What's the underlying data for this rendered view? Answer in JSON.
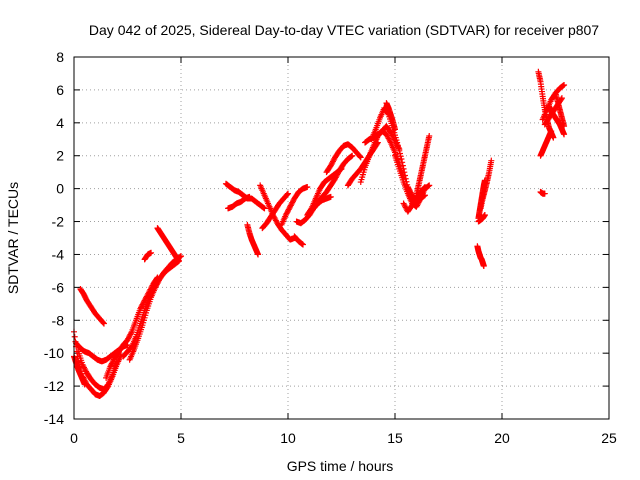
{
  "chart_data": {
    "type": "scatter",
    "title": "Day 042 of 2025, Sidereal Day-to-day VTEC variation (SDTVAR) for receiver p807",
    "xlabel": "GPS time / hours",
    "ylabel": "SDTVAR / TECUs",
    "xlim": [
      0,
      25
    ],
    "ylim": [
      -14,
      8
    ],
    "xticks": [
      0,
      5,
      10,
      15,
      20,
      25
    ],
    "yticks": [
      -14,
      -12,
      -10,
      -8,
      -6,
      -4,
      -2,
      0,
      2,
      4,
      6,
      8
    ],
    "grid": true,
    "legend": "none",
    "marker": "plus",
    "color": "#ff0000",
    "series": [
      {
        "tracks": [
          {
            "x": [
              0.0,
              0.2,
              0.4,
              0.6,
              0.8,
              1.0,
              1.2,
              1.4,
              1.6,
              1.8,
              2.0,
              2.2
            ],
            "y": [
              -8.7,
              -10.5,
              -11.4,
              -11.9,
              -12.2,
              -12.5,
              -12.6,
              -12.4,
              -12.0,
              -11.4,
              -10.7,
              -10.1
            ]
          },
          {
            "x": [
              0.2,
              0.4,
              0.6,
              0.8,
              1.0,
              1.2,
              1.4,
              1.6,
              1.8,
              2.0
            ],
            "y": [
              -9.9,
              -10.7,
              -11.2,
              -11.6,
              -11.9,
              -12.1,
              -12.2,
              -11.9,
              -11.3,
              -10.5
            ]
          },
          {
            "x": [
              0.1,
              0.3,
              0.5,
              0.7,
              0.9,
              1.1,
              1.3,
              1.5,
              1.7,
              1.9,
              2.1,
              2.3,
              2.5
            ],
            "y": [
              -9.4,
              -9.7,
              -9.9,
              -10.0,
              -10.2,
              -10.4,
              -10.5,
              -10.4,
              -10.2,
              -10.0,
              -9.8,
              -9.6,
              -9.5
            ]
          },
          {
            "x": [
              0.0,
              0.1,
              0.2,
              0.3,
              0.4,
              0.5
            ],
            "y": [
              -10.2,
              -10.6,
              -11.0,
              -11.3,
              -11.6,
              -11.9
            ]
          },
          {
            "x": [
              0.3,
              0.45,
              0.6,
              0.8,
              1.0,
              1.2,
              1.4
            ],
            "y": [
              -6.1,
              -6.4,
              -6.8,
              -7.2,
              -7.6,
              -7.9,
              -8.2
            ]
          },
          {
            "x": [
              1.5,
              1.7,
              1.9,
              2.1,
              2.3,
              2.5,
              2.7,
              2.9,
              3.1,
              3.3,
              3.5,
              3.7,
              3.9
            ],
            "y": [
              -11.5,
              -10.8,
              -10.3,
              -9.9,
              -9.5,
              -9.2,
              -8.7,
              -8.0,
              -7.3,
              -6.8,
              -6.3,
              -5.8,
              -5.4
            ]
          },
          {
            "x": [
              2.3,
              2.5,
              2.7,
              2.9,
              3.1,
              3.3,
              3.5,
              3.7,
              3.9,
              4.1,
              4.3,
              4.5,
              4.7,
              4.9
            ],
            "y": [
              -10.2,
              -9.9,
              -9.6,
              -9.0,
              -8.2,
              -7.4,
              -6.7,
              -6.1,
              -5.6,
              -5.3,
              -5.0,
              -4.8,
              -4.6,
              -4.4
            ]
          },
          {
            "x": [
              2.6,
              2.8,
              3.0,
              3.2,
              3.4,
              3.6,
              3.8,
              4.0,
              4.2,
              4.4,
              4.6,
              4.8,
              5.0
            ],
            "y": [
              -10.4,
              -9.8,
              -9.1,
              -8.3,
              -7.4,
              -6.6,
              -6.0,
              -5.5,
              -5.1,
              -4.8,
              -4.5,
              -4.3,
              -4.1
            ]
          },
          {
            "x": [
              3.3,
              3.45,
              3.6
            ],
            "y": [
              -4.3,
              -4.0,
              -3.9
            ]
          },
          {
            "x": [
              3.9,
              4.0,
              4.1,
              4.2,
              4.3,
              4.4,
              4.5,
              4.6,
              4.7,
              4.8,
              4.9
            ],
            "y": [
              -2.4,
              -2.6,
              -2.8,
              -3.0,
              -3.2,
              -3.4,
              -3.6,
              -3.8,
              -4.0,
              -4.2,
              -4.4
            ]
          },
          {
            "x": [
              7.1,
              7.3,
              7.5,
              7.7,
              7.9,
              8.1,
              8.3,
              8.5,
              8.7,
              8.9
            ],
            "y": [
              0.3,
              0.1,
              -0.1,
              -0.2,
              -0.4,
              -0.6,
              -0.6,
              -0.8,
              -1.0,
              -1.2
            ]
          },
          {
            "x": [
              7.2,
              7.4,
              7.6,
              7.8,
              8.0,
              8.2
            ],
            "y": [
              -1.2,
              -1.1,
              -0.9,
              -0.8,
              -0.6,
              -0.5
            ]
          },
          {
            "x": [
              8.1,
              8.2,
              8.3,
              8.4,
              8.5,
              8.6
            ],
            "y": [
              -2.2,
              -2.7,
              -3.1,
              -3.4,
              -3.7,
              -4.0
            ]
          },
          {
            "x": [
              8.7,
              8.9,
              9.1,
              9.3,
              9.5,
              9.7,
              9.9,
              10.1,
              10.3
            ],
            "y": [
              0.2,
              -0.4,
              -1.0,
              -1.6,
              -2.1,
              -2.5,
              -2.8,
              -3.1,
              -3.0
            ]
          },
          {
            "x": [
              8.8,
              9.0,
              9.2,
              9.4,
              9.6,
              9.8,
              10.0
            ],
            "y": [
              -2.4,
              -2.1,
              -1.7,
              -1.3,
              -0.9,
              -0.6,
              -0.3
            ]
          },
          {
            "x": [
              9.7,
              9.9,
              10.1,
              10.3,
              10.5,
              10.7,
              10.9
            ],
            "y": [
              -2.2,
              -1.6,
              -1.1,
              -0.6,
              -0.2,
              0.0,
              0.1
            ]
          },
          {
            "x": [
              10.4,
              10.6,
              10.8,
              11.0,
              11.2,
              11.4,
              11.6,
              11.8,
              12.0
            ],
            "y": [
              -2.0,
              -2.1,
              -1.9,
              -1.6,
              -1.2,
              -0.9,
              -0.7,
              -0.6,
              -0.5
            ]
          },
          {
            "x": [
              10.3,
              10.5,
              10.7
            ],
            "y": [
              -2.9,
              -3.2,
              -3.4
            ]
          },
          {
            "x": [
              10.9,
              11.1,
              11.3,
              11.5,
              11.7,
              11.9,
              12.1,
              12.3,
              12.5
            ],
            "y": [
              -1.6,
              -1.2,
              -0.6,
              0.0,
              0.4,
              0.6,
              0.8,
              1.0,
              1.2
            ]
          },
          {
            "x": [
              11.4,
              11.6,
              11.8,
              12.0,
              12.2,
              12.4,
              12.6,
              12.8,
              13.0
            ],
            "y": [
              -0.8,
              -0.5,
              -0.2,
              0.2,
              0.6,
              1.1,
              1.5,
              1.8,
              2.0
            ]
          },
          {
            "x": [
              11.8,
              12.0,
              12.2,
              12.4,
              12.6,
              12.8,
              13.0,
              13.2,
              13.4
            ],
            "y": [
              1.0,
              1.4,
              1.9,
              2.3,
              2.6,
              2.7,
              2.5,
              2.2,
              1.9
            ]
          },
          {
            "x": [
              12.8,
              13.0,
              13.2,
              13.4,
              13.6,
              13.8,
              14.0,
              14.2
            ],
            "y": [
              0.2,
              0.6,
              0.9,
              1.2,
              1.6,
              2.0,
              2.4,
              2.8
            ]
          },
          {
            "x": [
              13.4,
              13.6,
              13.8,
              14.0,
              14.2,
              14.4,
              14.6,
              14.8,
              15.0,
              15.2,
              15.4
            ],
            "y": [
              0.4,
              1.3,
              2.0,
              2.6,
              3.2,
              3.5,
              3.3,
              2.8,
              2.2,
              1.5,
              0.7
            ]
          },
          {
            "x": [
              13.6,
              13.8,
              14.0,
              14.2,
              14.4,
              14.6,
              14.8,
              15.0,
              15.2
            ],
            "y": [
              2.8,
              3.0,
              3.1,
              3.3,
              3.5,
              3.8,
              3.4,
              2.9,
              2.4
            ]
          },
          {
            "x": [
              13.9,
              14.1,
              14.3,
              14.5,
              14.7,
              14.9,
              15.1,
              15.3,
              15.5,
              15.7
            ],
            "y": [
              3.0,
              3.6,
              4.3,
              4.9,
              4.5,
              3.7,
              2.8,
              1.8,
              0.6,
              -0.5
            ]
          },
          {
            "x": [
              14.6,
              14.7,
              14.8,
              14.9,
              15.0
            ],
            "y": [
              5.2,
              4.9,
              4.5,
              4.1,
              3.6
            ]
          },
          {
            "x": [
              15.0,
              15.2,
              15.4,
              15.6,
              15.8,
              16.0,
              16.2,
              16.4,
              16.6
            ],
            "y": [
              2.0,
              1.2,
              0.4,
              -0.3,
              -0.9,
              -1.1,
              -0.6,
              0.0,
              0.2
            ]
          },
          {
            "x": [
              15.4,
              15.6,
              15.8,
              16.0,
              16.2,
              16.4
            ],
            "y": [
              -0.9,
              -1.4,
              -1.0,
              -0.6,
              -0.2,
              0.1
            ]
          },
          {
            "x": [
              15.6,
              15.8,
              16.0,
              16.2,
              16.4
            ],
            "y": [
              0.1,
              -0.4,
              -0.8,
              -0.6,
              -0.4
            ]
          },
          {
            "x": [
              16.0,
              16.1,
              16.2,
              16.3,
              16.4,
              16.5,
              16.6
            ],
            "y": [
              -0.4,
              0.2,
              0.8,
              1.4,
              2.0,
              2.6,
              3.2
            ]
          },
          {
            "x": [
              18.9,
              18.95,
              19.0,
              19.05,
              19.1,
              19.15,
              19.2
            ],
            "y": [
              -1.8,
              -1.4,
              -1.0,
              -0.6,
              -0.2,
              0.2,
              0.5
            ]
          },
          {
            "x": [
              19.0,
              19.1,
              19.2,
              19.3,
              19.4,
              19.5
            ],
            "y": [
              -1.2,
              -0.6,
              -0.1,
              0.4,
              1.0,
              1.7
            ]
          },
          {
            "x": [
              18.9,
              19.0,
              19.1,
              19.2
            ],
            "y": [
              -2.0,
              -1.9,
              -1.8,
              -1.6
            ]
          },
          {
            "x": [
              18.85,
              18.9,
              18.95,
              19.0,
              19.05,
              19.1,
              19.15
            ],
            "y": [
              -3.5,
              -3.8,
              -4.0,
              -4.2,
              -4.3,
              -4.5,
              -4.7
            ]
          },
          {
            "x": [
              21.7,
              21.8,
              21.9,
              22.0,
              22.1,
              22.2,
              22.3,
              22.4
            ],
            "y": [
              7.1,
              6.5,
              5.6,
              4.8,
              4.2,
              3.7,
              3.4,
              3.1
            ]
          },
          {
            "x": [
              21.8,
              21.9,
              22.0,
              22.1,
              22.2,
              22.3
            ],
            "y": [
              2.0,
              2.3,
              2.6,
              2.9,
              3.2,
              3.5
            ]
          },
          {
            "x": [
              21.8,
              21.9,
              22.0
            ],
            "y": [
              -0.2,
              -0.3,
              -0.3
            ]
          },
          {
            "x": [
              21.9,
              22.1,
              22.3,
              22.5,
              22.7,
              22.9
            ],
            "y": [
              4.2,
              4.8,
              5.4,
              5.8,
              6.1,
              6.3
            ]
          },
          {
            "x": [
              22.0,
              22.2,
              22.4,
              22.6,
              22.8
            ],
            "y": [
              3.9,
              4.3,
              4.7,
              5.1,
              5.5
            ]
          },
          {
            "x": [
              22.2,
              22.3,
              22.4,
              22.5,
              22.6,
              22.7,
              22.8,
              22.9
            ],
            "y": [
              5.0,
              4.7,
              4.5,
              4.3,
              4.1,
              3.9,
              3.6,
              3.3
            ]
          },
          {
            "x": [
              22.5,
              22.6,
              22.7,
              22.8,
              22.9
            ],
            "y": [
              5.8,
              5.3,
              4.8,
              4.3,
              3.8
            ]
          }
        ]
      }
    ]
  }
}
